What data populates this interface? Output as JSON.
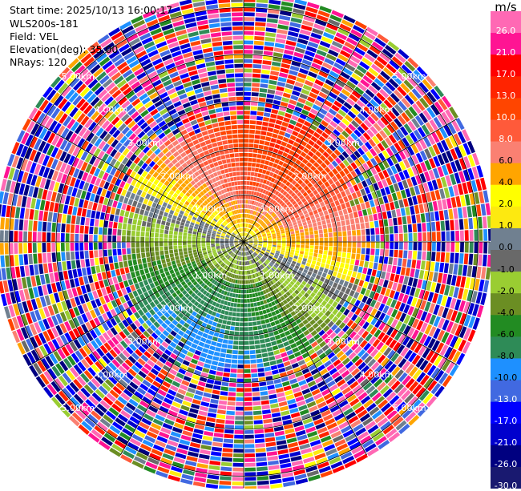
{
  "header": {
    "start_time": "Start time: 2025/10/13 16:00:17",
    "instrument": "WLS200s-181",
    "field": "Field: VEL",
    "elevation": "Elevation(deg): 35.00",
    "nrays": "NRays: 120"
  },
  "chart_data": {
    "type": "heatmap",
    "projection": "polar-ppi",
    "field": "VEL",
    "units": "m/s",
    "elevation_deg": 35.0,
    "n_rays": 120,
    "max_range_km": 5.25,
    "range_rings_km": [
      1.0,
      2.0,
      3.0,
      4.0,
      5.0
    ],
    "ring_labels": [
      "1.00km",
      "2.00km",
      "3.00km",
      "4.00km",
      "5.00km"
    ],
    "radial_lines_deg": [
      0,
      30,
      60,
      90,
      120,
      150,
      180,
      210,
      240,
      270,
      300,
      330
    ],
    "colorbar": {
      "labels": [
        "26.0",
        "21.0",
        "17.0",
        "13.0",
        "10.0",
        "8.0",
        "6.0",
        "4.0",
        "2.0",
        "1.0",
        "0.0",
        "-1.0",
        "-2.0",
        "-4.0",
        "-6.0",
        "-8.0",
        "-10.0",
        "-13.0",
        "-17.0",
        "-21.0",
        "-26.0",
        "-30.0"
      ],
      "colors": [
        "#ff69b4",
        "#ff1493",
        "#ff0000",
        "#ff2400",
        "#ff4500",
        "#ff5a3a",
        "#fa8072",
        "#ffa500",
        "#ffff00",
        "#fde910",
        "#708090",
        "#696969",
        "#9acd32",
        "#6b8e23",
        "#228b22",
        "#2e8b57",
        "#1e90ff",
        "#4169e1",
        "#0000ff",
        "#0000cd",
        "#000080",
        "#191970"
      ]
    },
    "pattern": {
      "valid_range_km": [
        0.0,
        2.6
      ],
      "zones": [
        {
          "azimuth_deg": 0,
          "label": "north",
          "mean_velocity": 7.0
        },
        {
          "azimuth_deg": 90,
          "label": "east",
          "mean_velocity": 3.5
        },
        {
          "azimuth_deg": 180,
          "label": "south",
          "mean_velocity": -9.0
        },
        {
          "azimuth_deg": 270,
          "label": "west",
          "mean_velocity": -3.0
        }
      ]
    }
  }
}
